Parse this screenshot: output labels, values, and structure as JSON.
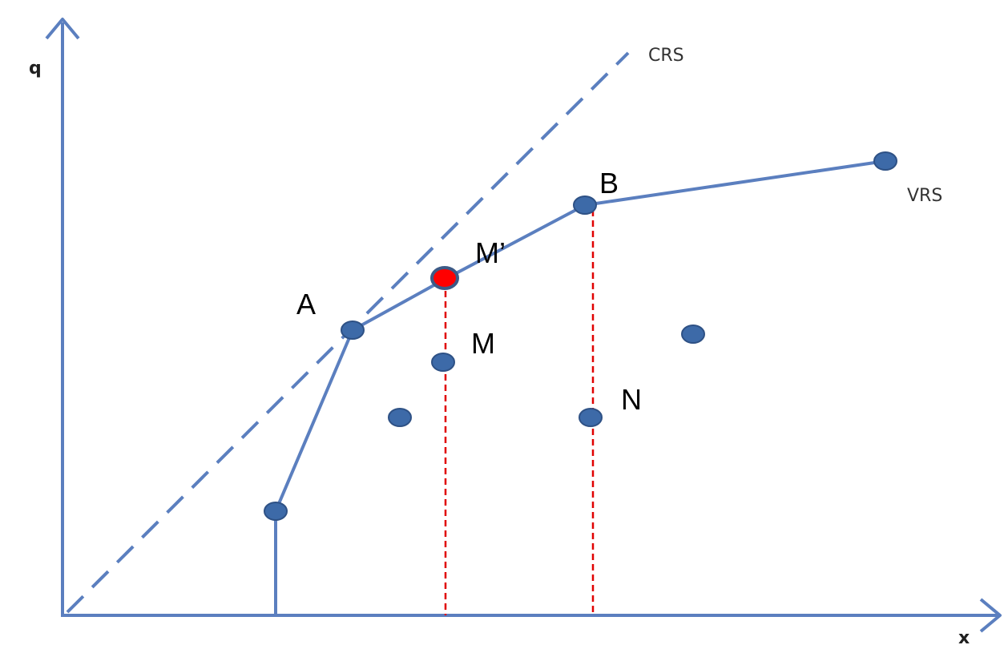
{
  "labels": {
    "y_axis": "q",
    "x_axis": "x",
    "crs": "CRS",
    "vrs": "VRS",
    "point_a": "A",
    "point_b": "B",
    "point_m_prime": "M’",
    "point_m": "M",
    "point_n": "N"
  },
  "colors": {
    "axis": "#5b7fbf",
    "frontier": "#5b7fbf",
    "crs_dashed": "#5b7fbf",
    "point_fill": "#3d6aa8",
    "point_stroke": "#2e5185",
    "projection_point_fill": "#ff0000",
    "projection_point_stroke": "#3d5a86",
    "guide_dashed": "#e00000"
  }
}
